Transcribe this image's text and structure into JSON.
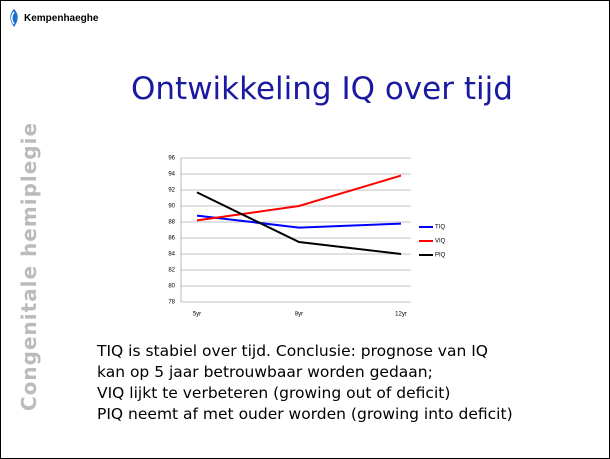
{
  "logo": "Kempenhaeghe",
  "title": "Ontwikkeling IQ over tijd",
  "sidebar": "Congenitale hemiplegie",
  "body": [
    "TIQ is stabiel over tijd. Conclusie: prognose van IQ",
    "kan op 5 jaar betrouwbaar worden gedaan;",
    "VIQ lijkt te verbeteren (growing out of deficit)",
    "PIQ neemt af met ouder worden (growing into deficit)"
  ],
  "chart_data": {
    "type": "line",
    "categories": [
      "5yr",
      "8yr",
      "12yr"
    ],
    "series": [
      {
        "name": "TIQ",
        "color": "#0000ff",
        "values": [
          88.8,
          87.3,
          87.8
        ]
      },
      {
        "name": "VIQ",
        "color": "#ff0000",
        "values": [
          88.2,
          90,
          93.8
        ]
      },
      {
        "name": "PIQ",
        "color": "#000000",
        "values": [
          91.7,
          85.5,
          84
        ]
      }
    ],
    "ylim": [
      78,
      96
    ],
    "yticks": [
      78,
      80,
      82,
      84,
      86,
      88,
      90,
      92,
      94,
      96
    ],
    "grid": true,
    "legend": "right"
  }
}
